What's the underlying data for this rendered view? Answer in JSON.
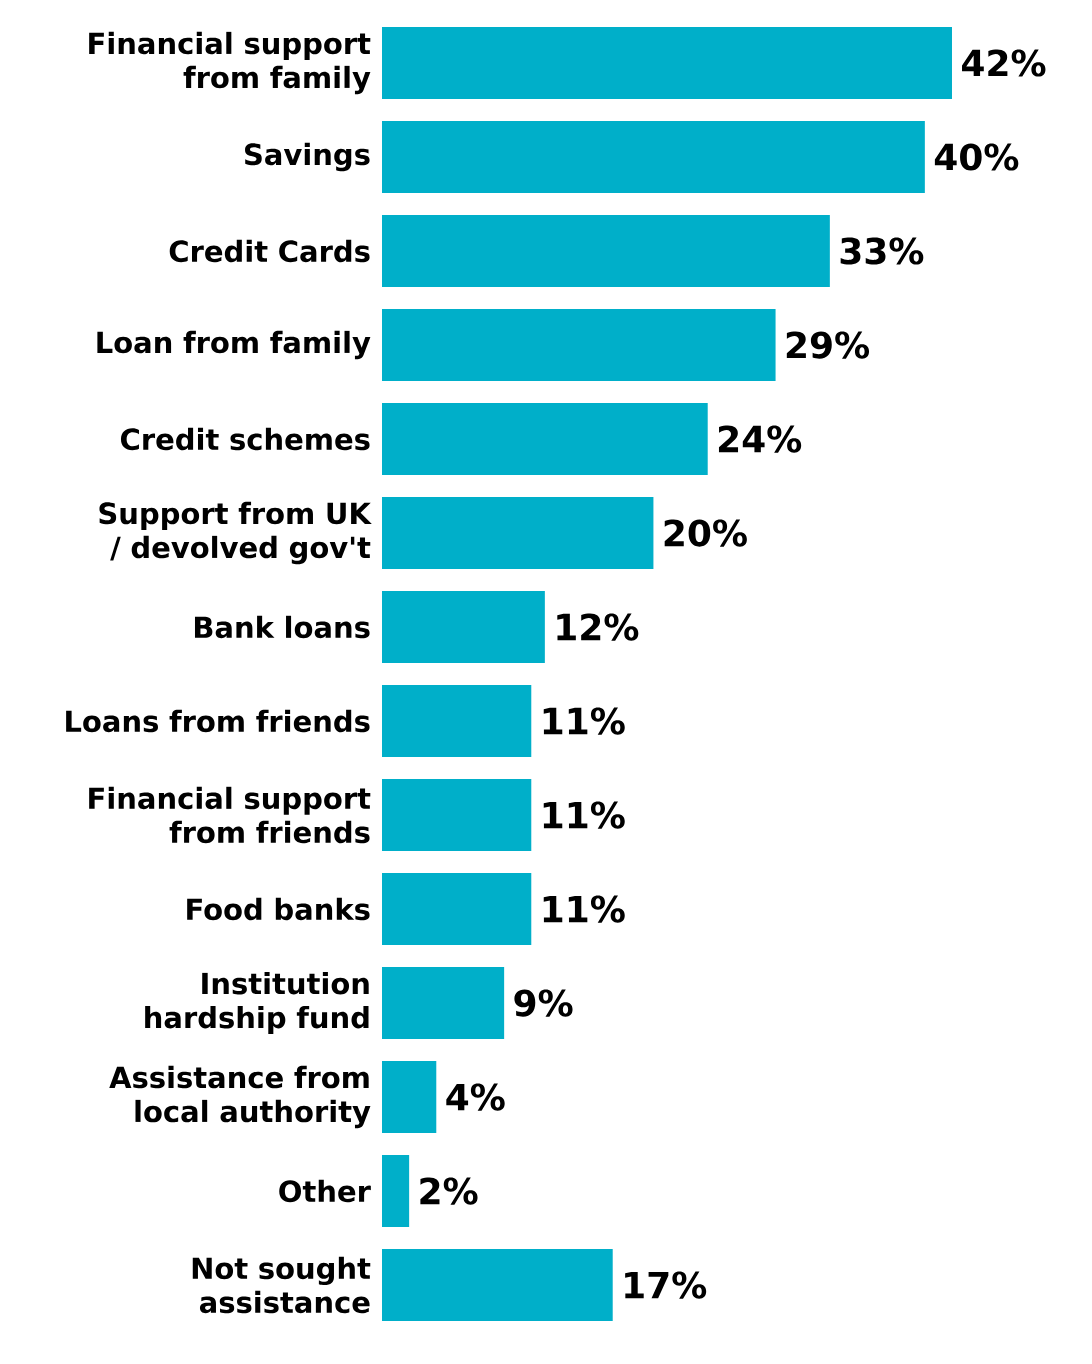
{
  "chart_data": {
    "type": "bar",
    "orientation": "horizontal",
    "color": "#00afc9",
    "categories": [
      "Financial support from family",
      "Savings",
      "Credit Cards",
      "Loan from family",
      "Credit schemes",
      "Support from UK / devolved gov't",
      "Bank loans",
      "Loans from friends",
      "Financial support from friends",
      "Food banks",
      "Institution hardship fund",
      "Assistance from local authority",
      "Other",
      "Not sought assistance"
    ],
    "values": [
      42,
      40,
      33,
      29,
      24,
      20,
      12,
      11,
      11,
      11,
      9,
      4,
      2,
      17
    ],
    "value_labels": [
      "42%",
      "40%",
      "33%",
      "29%",
      "24%",
      "20%",
      "12%",
      "11%",
      "11%",
      "11%",
      "9%",
      "4%",
      "2%",
      "17%"
    ]
  }
}
